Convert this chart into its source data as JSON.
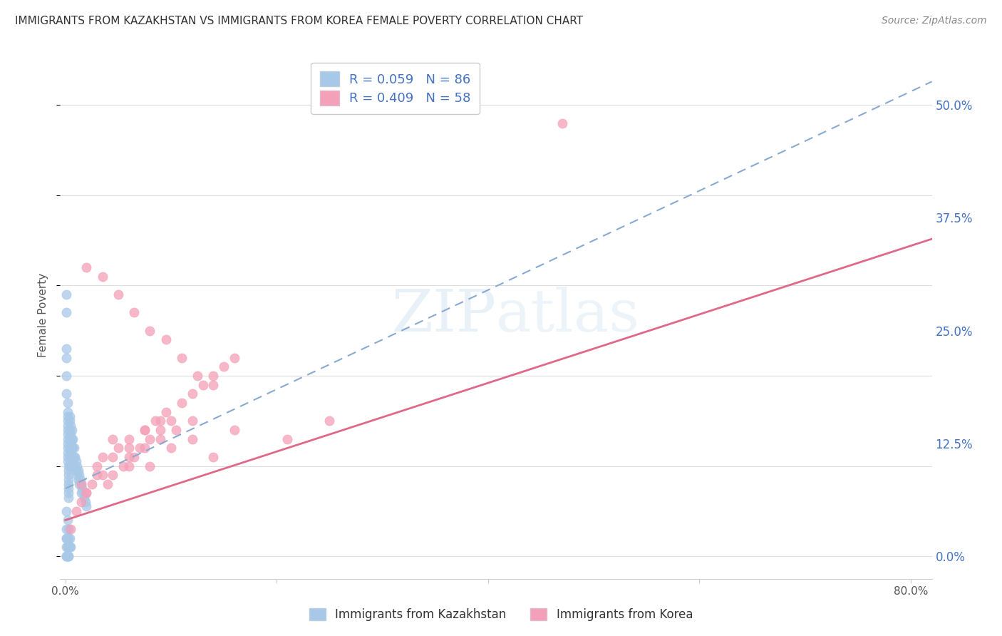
{
  "title": "IMMIGRANTS FROM KAZAKHSTAN VS IMMIGRANTS FROM KOREA FEMALE POVERTY CORRELATION CHART",
  "source": "Source: ZipAtlas.com",
  "ylabel": "Female Poverty",
  "xlim": [
    -0.005,
    0.82
  ],
  "ylim": [
    -0.025,
    0.56
  ],
  "kaz_color": "#a8c8e8",
  "kor_color": "#f4a0b8",
  "kaz_line_color": "#88aad0",
  "kor_line_color": "#e06888",
  "background_color": "#ffffff",
  "grid_color": "#dddddd",
  "text_color": "#4472c4",
  "legend_text_color": "#333333",
  "kaz_x": [
    0.001,
    0.001,
    0.001,
    0.001,
    0.001,
    0.001,
    0.002,
    0.002,
    0.002,
    0.002,
    0.002,
    0.002,
    0.002,
    0.002,
    0.002,
    0.002,
    0.002,
    0.002,
    0.002,
    0.003,
    0.003,
    0.003,
    0.003,
    0.003,
    0.003,
    0.003,
    0.003,
    0.004,
    0.004,
    0.004,
    0.004,
    0.004,
    0.004,
    0.004,
    0.005,
    0.005,
    0.005,
    0.005,
    0.005,
    0.006,
    0.006,
    0.006,
    0.007,
    0.007,
    0.007,
    0.008,
    0.008,
    0.009,
    0.009,
    0.01,
    0.01,
    0.011,
    0.011,
    0.012,
    0.012,
    0.013,
    0.013,
    0.014,
    0.015,
    0.015,
    0.016,
    0.017,
    0.018,
    0.019,
    0.02,
    0.001,
    0.002,
    0.003,
    0.004,
    0.005,
    0.001,
    0.002,
    0.003,
    0.001,
    0.002,
    0.001,
    0.003,
    0.004,
    0.002,
    0.003,
    0.001,
    0.002,
    0.001,
    0.003,
    0.002,
    0.001
  ],
  "kaz_y": [
    0.29,
    0.27,
    0.23,
    0.22,
    0.2,
    0.18,
    0.17,
    0.16,
    0.155,
    0.15,
    0.145,
    0.14,
    0.135,
    0.13,
    0.125,
    0.12,
    0.115,
    0.11,
    0.105,
    0.1,
    0.095,
    0.09,
    0.085,
    0.08,
    0.075,
    0.07,
    0.065,
    0.155,
    0.15,
    0.14,
    0.13,
    0.12,
    0.11,
    0.1,
    0.145,
    0.135,
    0.125,
    0.115,
    0.105,
    0.14,
    0.13,
    0.12,
    0.13,
    0.12,
    0.11,
    0.12,
    0.11,
    0.11,
    0.1,
    0.105,
    0.095,
    0.1,
    0.09,
    0.095,
    0.085,
    0.09,
    0.08,
    0.085,
    0.08,
    0.07,
    0.075,
    0.07,
    0.065,
    0.06,
    0.055,
    0.05,
    0.04,
    0.03,
    0.02,
    0.01,
    0.0,
    0.01,
    0.0,
    0.02,
    0.01,
    0.03,
    0.02,
    0.01,
    0.0,
    0.01,
    0.02,
    0.0,
    0.01,
    0.0,
    0.01,
    0.0
  ],
  "kor_x": [
    0.005,
    0.01,
    0.015,
    0.02,
    0.025,
    0.03,
    0.035,
    0.04,
    0.045,
    0.05,
    0.055,
    0.06,
    0.065,
    0.07,
    0.075,
    0.08,
    0.085,
    0.09,
    0.095,
    0.1,
    0.11,
    0.12,
    0.13,
    0.14,
    0.15,
    0.16,
    0.02,
    0.035,
    0.05,
    0.065,
    0.08,
    0.095,
    0.11,
    0.125,
    0.14,
    0.015,
    0.03,
    0.045,
    0.06,
    0.075,
    0.09,
    0.105,
    0.12,
    0.045,
    0.06,
    0.075,
    0.09,
    0.21,
    0.25,
    0.02,
    0.035,
    0.06,
    0.08,
    0.1,
    0.12,
    0.14,
    0.47,
    0.16
  ],
  "kor_y": [
    0.03,
    0.05,
    0.06,
    0.07,
    0.08,
    0.1,
    0.11,
    0.08,
    0.09,
    0.12,
    0.1,
    0.13,
    0.11,
    0.12,
    0.14,
    0.13,
    0.15,
    0.14,
    0.16,
    0.15,
    0.17,
    0.18,
    0.19,
    0.2,
    0.21,
    0.22,
    0.32,
    0.31,
    0.29,
    0.27,
    0.25,
    0.24,
    0.22,
    0.2,
    0.19,
    0.08,
    0.09,
    0.11,
    0.1,
    0.12,
    0.13,
    0.14,
    0.15,
    0.13,
    0.12,
    0.14,
    0.15,
    0.13,
    0.15,
    0.07,
    0.09,
    0.11,
    0.1,
    0.12,
    0.13,
    0.11,
    0.48,
    0.14
  ],
  "kaz_line_intercept": 0.075,
  "kaz_line_slope": 0.55,
  "kor_line_intercept": 0.04,
  "kor_line_slope": 0.38,
  "y_ticks": [
    0.0,
    0.125,
    0.25,
    0.375,
    0.5
  ],
  "y_tick_labels": [
    "0.0%",
    "12.5%",
    "25.0%",
    "37.5%",
    "50.0%"
  ],
  "x_ticks": [
    0.0,
    0.2,
    0.4,
    0.6,
    0.8
  ],
  "x_tick_labels_show": [
    "0.0%",
    "80.0%"
  ]
}
